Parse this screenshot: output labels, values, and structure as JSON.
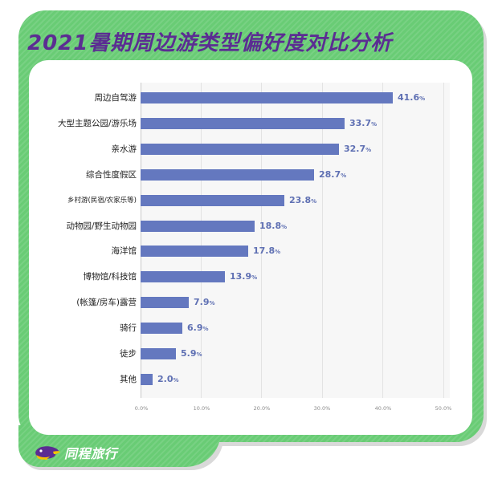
{
  "title": "2021暑期周边游类型偏好度对比分析",
  "brand": {
    "name": "同程旅行",
    "icon": "tongcheng-bird-logo-icon"
  },
  "colors": {
    "frame_green": "#69cc75",
    "title_purple": "#5b2d92",
    "bar_blue": "#6478bf",
    "value_label": "#5f70b3",
    "plot_bg": "#f7f7f7",
    "grid": "#e3e3e3"
  },
  "chart_data": {
    "type": "bar",
    "orientation": "horizontal",
    "title": "2021暑期周边游类型偏好度对比分析",
    "xlabel": "",
    "ylabel": "",
    "categories": [
      "周边自驾游",
      "大型主题公园/游乐场",
      "亲水游",
      "综合性度假区",
      "乡村游(民宿/农家乐等)",
      "动物园/野生动物园",
      "海洋馆",
      "博物馆/科技馆",
      "(帐篷/房车)露营",
      "骑行",
      "徒步",
      "其他"
    ],
    "values": [
      41.6,
      33.7,
      32.7,
      28.7,
      23.8,
      18.8,
      17.8,
      13.9,
      7.9,
      6.9,
      5.9,
      2.0
    ],
    "value_labels": [
      "41.6",
      "33.7",
      "32.7",
      "28.7",
      "23.8",
      "18.8",
      "17.8",
      "13.9",
      "7.9",
      "6.9",
      "5.9",
      "2.0"
    ],
    "value_suffix": "%",
    "xlim": [
      0,
      50
    ],
    "xticks": [
      "0.0%",
      "10.0%",
      "20.0%",
      "30.0%",
      "40.0%",
      "50.0%"
    ],
    "grid": true,
    "legend": null
  }
}
